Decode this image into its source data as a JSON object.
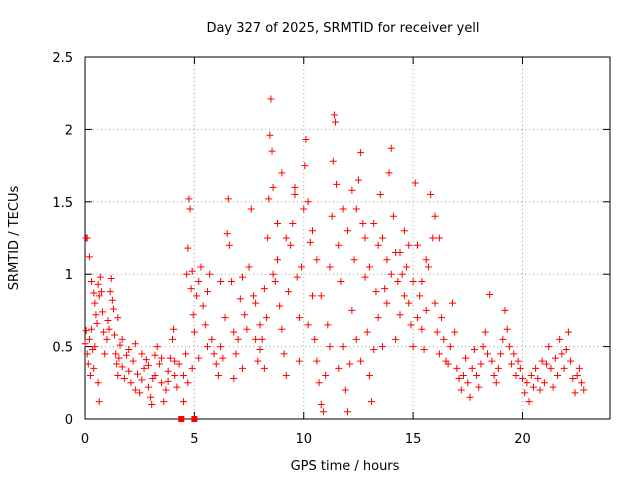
{
  "chart_data": {
    "type": "scatter",
    "title": "Day 327 of 2025, SRMTID for receiver yell",
    "xlabel": "GPS time / hours",
    "ylabel": "SRMTID / TECUs",
    "xlim": [
      0,
      24
    ],
    "ylim": [
      0,
      2.5
    ],
    "xticks": [
      0,
      5,
      10,
      15,
      20
    ],
    "xtick_labels": [
      "0",
      "5",
      "10",
      "15",
      "20"
    ],
    "yticks": [
      0,
      0.5,
      1,
      1.5,
      2,
      2.5
    ],
    "ytick_labels": [
      "0",
      "0.5",
      "1",
      "1.5",
      "2",
      "2.5"
    ],
    "grid": true,
    "marker": "+",
    "series_color": "#ff0000",
    "series": [
      {
        "name": "SRMTID",
        "points": [
          [
            0.0,
            0.52
          ],
          [
            0.05,
            0.61
          ],
          [
            0.1,
            0.45
          ],
          [
            0.15,
            0.38
          ],
          [
            0.2,
            0.55
          ],
          [
            0.25,
            0.3
          ],
          [
            0.3,
            0.62
          ],
          [
            0.35,
            0.48
          ],
          [
            0.05,
            1.25
          ],
          [
            0.1,
            1.25
          ],
          [
            0.2,
            1.12
          ],
          [
            0.3,
            0.95
          ],
          [
            0.4,
            0.87
          ],
          [
            0.45,
            0.8
          ],
          [
            0.5,
            0.72
          ],
          [
            0.55,
            0.66
          ],
          [
            0.6,
            0.93
          ],
          [
            0.65,
            0.85
          ],
          [
            0.7,
            0.98
          ],
          [
            0.75,
            0.88
          ],
          [
            0.8,
            0.74
          ],
          [
            0.85,
            0.6
          ],
          [
            0.4,
            0.35
          ],
          [
            0.45,
            0.5
          ],
          [
            0.6,
            0.25
          ],
          [
            0.65,
            0.12
          ],
          [
            0.9,
            0.45
          ],
          [
            1.0,
            0.55
          ],
          [
            1.05,
            0.68
          ],
          [
            1.1,
            0.62
          ],
          [
            1.15,
            0.88
          ],
          [
            1.2,
            0.97
          ],
          [
            1.25,
            0.82
          ],
          [
            1.3,
            0.76
          ],
          [
            1.35,
            0.58
          ],
          [
            1.4,
            0.45
          ],
          [
            1.45,
            0.38
          ],
          [
            1.5,
            0.3
          ],
          [
            1.55,
            0.42
          ],
          [
            1.6,
            0.51
          ],
          [
            1.7,
            0.36
          ],
          [
            1.8,
            0.28
          ],
          [
            1.9,
            0.44
          ],
          [
            2.0,
            0.33
          ],
          [
            2.1,
            0.25
          ],
          [
            2.2,
            0.4
          ],
          [
            2.3,
            0.2
          ],
          [
            2.4,
            0.31
          ],
          [
            2.5,
            0.18
          ],
          [
            2.6,
            0.27
          ],
          [
            2.7,
            0.35
          ],
          [
            2.8,
            0.41
          ],
          [
            2.9,
            0.22
          ],
          [
            3.0,
            0.15
          ],
          [
            3.05,
            0.1
          ],
          [
            3.1,
            0.28
          ],
          [
            3.2,
            0.44
          ],
          [
            3.3,
            0.5
          ],
          [
            3.4,
            0.38
          ],
          [
            3.5,
            0.25
          ],
          [
            3.6,
            0.12
          ],
          [
            3.7,
            0.2
          ],
          [
            3.8,
            0.33
          ],
          [
            3.9,
            0.42
          ],
          [
            4.0,
            0.55
          ],
          [
            4.05,
            0.62
          ],
          [
            4.1,
            0.3
          ],
          [
            4.2,
            0.22
          ],
          [
            4.3,
            0.38
          ],
          [
            1.5,
            0.7
          ],
          [
            1.7,
            0.55
          ],
          [
            2.0,
            0.48
          ],
          [
            2.3,
            0.52
          ],
          [
            2.6,
            0.45
          ],
          [
            2.9,
            0.37
          ],
          [
            3.2,
            0.3
          ],
          [
            3.5,
            0.42
          ],
          [
            3.8,
            0.26
          ],
          [
            4.1,
            0.4
          ],
          [
            4.5,
            0.3
          ],
          [
            4.6,
            0.45
          ],
          [
            4.65,
            1.0
          ],
          [
            4.7,
            1.18
          ],
          [
            4.75,
            1.52
          ],
          [
            4.8,
            1.45
          ],
          [
            4.85,
            0.9
          ],
          [
            4.9,
            1.02
          ],
          [
            4.95,
            0.72
          ],
          [
            5.0,
            0.6
          ],
          [
            5.1,
            0.85
          ],
          [
            5.2,
            0.95
          ],
          [
            5.3,
            1.05
          ],
          [
            5.4,
            0.78
          ],
          [
            5.5,
            0.65
          ],
          [
            5.6,
            0.88
          ],
          [
            5.7,
            1.0
          ],
          [
            5.8,
            0.55
          ],
          [
            5.9,
            0.45
          ],
          [
            6.0,
            0.38
          ],
          [
            6.1,
            0.3
          ],
          [
            6.2,
            0.5
          ],
          [
            6.3,
            0.42
          ],
          [
            6.4,
            0.7
          ],
          [
            6.5,
            1.28
          ],
          [
            6.55,
            1.52
          ],
          [
            6.6,
            1.2
          ],
          [
            6.7,
            0.95
          ],
          [
            6.8,
            0.6
          ],
          [
            6.9,
            0.45
          ],
          [
            7.0,
            0.55
          ],
          [
            7.1,
            0.83
          ],
          [
            7.2,
            0.98
          ],
          [
            7.3,
            0.72
          ],
          [
            7.4,
            0.62
          ],
          [
            7.5,
            1.05
          ],
          [
            7.6,
            1.45
          ],
          [
            7.7,
            0.85
          ],
          [
            7.8,
            0.55
          ],
          [
            7.9,
            0.4
          ],
          [
            8.0,
            0.48
          ],
          [
            8.1,
            0.55
          ],
          [
            8.2,
            0.35
          ],
          [
            8.3,
            0.7
          ],
          [
            8.35,
            1.25
          ],
          [
            8.4,
            1.52
          ],
          [
            8.45,
            1.96
          ],
          [
            8.5,
            2.21
          ],
          [
            8.55,
            1.85
          ],
          [
            8.6,
            1.6
          ],
          [
            8.7,
            0.95
          ],
          [
            8.8,
            1.1
          ],
          [
            8.9,
            0.78
          ],
          [
            9.0,
            0.62
          ],
          [
            9.1,
            0.45
          ],
          [
            9.2,
            0.3
          ],
          [
            9.3,
            0.88
          ],
          [
            9.4,
            1.2
          ],
          [
            9.5,
            1.35
          ],
          [
            9.6,
            1.6
          ],
          [
            9.7,
            0.98
          ],
          [
            9.8,
            0.7
          ],
          [
            9.9,
            1.05
          ],
          [
            10.0,
            1.45
          ],
          [
            10.05,
            1.75
          ],
          [
            10.1,
            1.93
          ],
          [
            10.2,
            1.5
          ],
          [
            10.3,
            1.22
          ],
          [
            10.4,
            0.85
          ],
          [
            10.5,
            0.55
          ],
          [
            10.6,
            0.4
          ],
          [
            10.7,
            0.25
          ],
          [
            10.8,
            0.1
          ],
          [
            10.9,
            0.05
          ],
          [
            11.0,
            0.3
          ],
          [
            11.1,
            0.65
          ],
          [
            11.2,
            1.05
          ],
          [
            11.3,
            1.4
          ],
          [
            11.35,
            1.78
          ],
          [
            11.4,
            2.1
          ],
          [
            11.45,
            2.05
          ],
          [
            11.5,
            1.62
          ],
          [
            11.6,
            1.2
          ],
          [
            11.7,
            0.95
          ],
          [
            11.8,
            0.5
          ],
          [
            11.9,
            0.2
          ],
          [
            12.0,
            0.05
          ],
          [
            12.1,
            0.38
          ],
          [
            12.2,
            0.75
          ],
          [
            12.3,
            1.1
          ],
          [
            12.4,
            1.45
          ],
          [
            12.5,
            1.65
          ],
          [
            12.6,
            1.84
          ],
          [
            12.7,
            1.35
          ],
          [
            12.8,
            0.98
          ],
          [
            12.9,
            0.6
          ],
          [
            13.0,
            0.3
          ],
          [
            13.1,
            0.12
          ],
          [
            13.2,
            0.48
          ],
          [
            13.3,
            0.88
          ],
          [
            13.4,
            1.2
          ],
          [
            13.5,
            1.55
          ],
          [
            13.6,
            1.25
          ],
          [
            13.7,
            0.9
          ],
          [
            13.8,
            1.1
          ],
          [
            13.9,
            1.7
          ],
          [
            14.0,
            1.87
          ],
          [
            14.1,
            1.4
          ],
          [
            14.2,
            1.15
          ],
          [
            14.3,
            0.95
          ],
          [
            14.4,
            0.72
          ],
          [
            14.5,
            1.0
          ],
          [
            14.6,
            1.3
          ],
          [
            14.7,
            1.05
          ],
          [
            14.8,
            0.8
          ],
          [
            14.9,
            0.65
          ],
          [
            15.0,
            0.95
          ],
          [
            15.1,
            1.63
          ],
          [
            15.2,
            1.2
          ],
          [
            15.3,
            0.85
          ],
          [
            15.4,
            0.62
          ],
          [
            15.5,
            0.48
          ],
          [
            15.6,
            0.75
          ],
          [
            15.7,
            1.05
          ],
          [
            15.8,
            1.55
          ],
          [
            15.9,
            1.25
          ],
          [
            16.0,
            0.8
          ],
          [
            16.1,
            0.6
          ],
          [
            16.2,
            0.45
          ],
          [
            16.3,
            0.7
          ],
          [
            16.4,
            0.55
          ],
          [
            16.5,
            0.4
          ],
          [
            16.6,
            0.38
          ],
          [
            16.7,
            0.5
          ],
          [
            16.8,
            0.8
          ],
          [
            16.9,
            0.6
          ],
          [
            17.0,
            0.35
          ],
          [
            17.1,
            0.28
          ],
          [
            17.2,
            0.2
          ],
          [
            17.3,
            0.3
          ],
          [
            17.4,
            0.42
          ],
          [
            17.5,
            0.25
          ],
          [
            17.6,
            0.15
          ],
          [
            17.7,
            0.35
          ],
          [
            17.8,
            0.48
          ],
          [
            17.9,
            0.3
          ],
          [
            18.0,
            0.22
          ],
          [
            18.1,
            0.38
          ],
          [
            18.2,
            0.5
          ],
          [
            18.3,
            0.6
          ],
          [
            18.4,
            0.45
          ],
          [
            18.5,
            0.86
          ],
          [
            18.6,
            0.4
          ],
          [
            18.7,
            0.3
          ],
          [
            18.8,
            0.25
          ],
          [
            18.9,
            0.35
          ],
          [
            19.0,
            0.45
          ],
          [
            19.1,
            0.55
          ],
          [
            19.2,
            0.75
          ],
          [
            19.3,
            0.62
          ],
          [
            19.4,
            0.5
          ],
          [
            19.5,
            0.38
          ],
          [
            19.6,
            0.45
          ],
          [
            19.7,
            0.3
          ],
          [
            19.8,
            0.4
          ],
          [
            19.9,
            0.35
          ],
          [
            20.0,
            0.28
          ],
          [
            20.1,
            0.18
          ],
          [
            20.2,
            0.25
          ],
          [
            20.3,
            0.12
          ],
          [
            20.4,
            0.3
          ],
          [
            20.5,
            0.22
          ],
          [
            20.6,
            0.35
          ],
          [
            20.7,
            0.28
          ],
          [
            20.8,
            0.2
          ],
          [
            20.9,
            0.4
          ],
          [
            21.0,
            0.25
          ],
          [
            21.1,
            0.38
          ],
          [
            21.2,
            0.5
          ],
          [
            21.3,
            0.35
          ],
          [
            21.4,
            0.22
          ],
          [
            21.5,
            0.42
          ],
          [
            21.6,
            0.3
          ],
          [
            21.7,
            0.55
          ],
          [
            21.8,
            0.45
          ],
          [
            21.9,
            0.35
          ],
          [
            22.0,
            0.48
          ],
          [
            22.1,
            0.6
          ],
          [
            22.2,
            0.4
          ],
          [
            22.3,
            0.28
          ],
          [
            22.4,
            0.18
          ],
          [
            22.5,
            0.3
          ],
          [
            22.6,
            0.35
          ],
          [
            22.7,
            0.25
          ],
          [
            22.8,
            0.2
          ],
          [
            9.0,
            1.7
          ],
          [
            9.2,
            1.25
          ],
          [
            9.6,
            1.55
          ],
          [
            9.8,
            0.4
          ],
          [
            10.2,
            0.65
          ],
          [
            10.4,
            1.3
          ],
          [
            10.6,
            1.1
          ],
          [
            10.8,
            0.85
          ],
          [
            11.2,
            0.5
          ],
          [
            11.6,
            0.35
          ],
          [
            11.8,
            1.45
          ],
          [
            12.0,
            1.3
          ],
          [
            12.2,
            1.58
          ],
          [
            12.4,
            0.55
          ],
          [
            12.6,
            0.4
          ],
          [
            12.8,
            1.25
          ],
          [
            13.0,
            1.05
          ],
          [
            13.2,
            1.35
          ],
          [
            13.4,
            0.7
          ],
          [
            13.6,
            0.5
          ],
          [
            13.8,
            0.8
          ],
          [
            14.0,
            1.0
          ],
          [
            14.2,
            0.55
          ],
          [
            14.4,
            1.15
          ],
          [
            14.6,
            0.85
          ],
          [
            14.8,
            1.2
          ],
          [
            15.0,
            0.5
          ],
          [
            15.2,
            0.7
          ],
          [
            15.4,
            0.95
          ],
          [
            15.6,
            1.1
          ],
          [
            16.0,
            1.4
          ],
          [
            16.2,
            1.25
          ],
          [
            8.2,
            0.9
          ],
          [
            8.6,
            1.0
          ],
          [
            8.8,
            1.35
          ],
          [
            8.0,
            0.65
          ],
          [
            7.8,
            0.8
          ],
          [
            7.2,
            0.35
          ],
          [
            6.8,
            0.28
          ],
          [
            6.2,
            0.95
          ],
          [
            5.6,
            0.5
          ],
          [
            5.2,
            0.42
          ],
          [
            4.9,
            0.35
          ],
          [
            4.7,
            0.25
          ],
          [
            4.5,
            0.12
          ]
        ]
      }
    ],
    "square_markers": [
      [
        4.4,
        0.0
      ],
      [
        5.0,
        0.0
      ]
    ]
  }
}
